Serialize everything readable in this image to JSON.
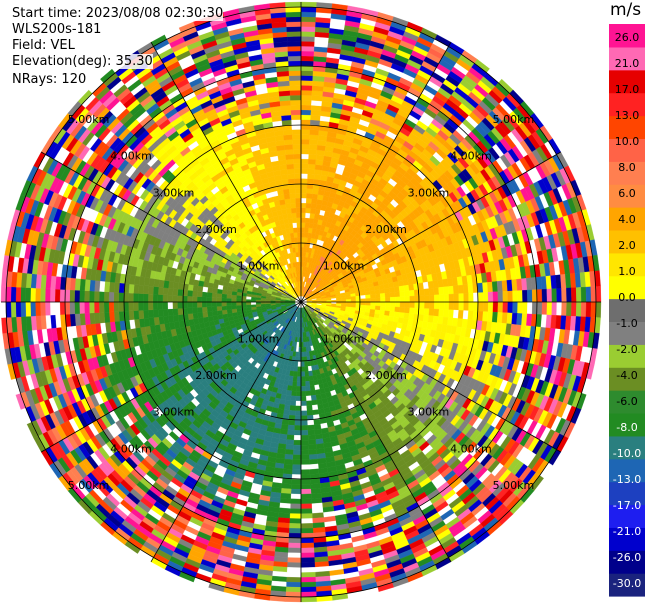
{
  "header": {
    "start_time": "Start time: 2023/08/08 02:30:30",
    "instrument": "WLS200s-181",
    "field": "Field: VEL",
    "elevation": "Elevation(deg): 35.30",
    "nrays": "NRays: 120"
  },
  "chart_data": {
    "type": "ppi",
    "field": "VEL",
    "units": "m/s",
    "nrays": 120,
    "elevation_deg": 35.3,
    "range_rings": [
      "1.00km",
      "2.00km",
      "3.00km",
      "4.00km",
      "5.00km"
    ],
    "colorbar": {
      "unit": "m/s",
      "colors": [
        "#1a237e",
        "#00008b",
        "#0000cd",
        "#1e1ef0",
        "#1d40c0",
        "#1e66b4",
        "#2a7f7f",
        "#228b22",
        "#2e8b2e",
        "#6b8e23",
        "#9acd32",
        "#808080",
        "#6e6e6e",
        "#ffff00",
        "#ffe600",
        "#ffc000",
        "#ffa500",
        "#ff8c42",
        "#ff7f50",
        "#ff6347",
        "#ff4500",
        "#ff2222",
        "#e60000",
        "#ff69b4",
        "#ff1493"
      ],
      "labels": [
        "-30.0",
        "-26.0",
        "-21.0",
        "-17.0",
        "-13.0",
        "-10.0",
        "-8.0",
        "-6.0",
        "-4.0",
        "-2.0",
        "-1.0",
        "0.0",
        "1.0",
        "2.0",
        "4.0",
        "6.0",
        "8.0",
        "10.0",
        "13.0",
        "17.0",
        "21.0",
        "26.0"
      ]
    }
  }
}
